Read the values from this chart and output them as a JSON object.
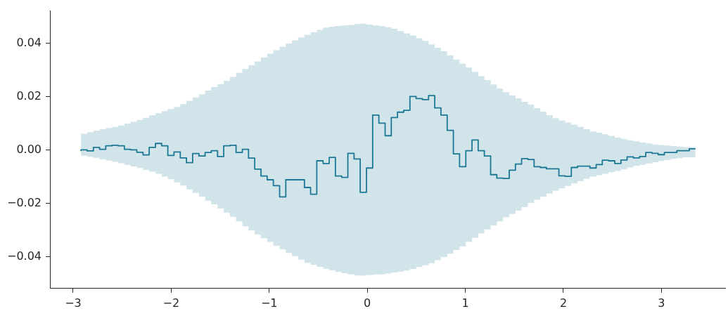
{
  "chart_data": {
    "type": "step",
    "x": [
      -2.92,
      -2.857,
      -2.793,
      -2.73,
      -2.667,
      -2.604,
      -2.54,
      -2.477,
      -2.414,
      -2.35,
      -2.287,
      -2.224,
      -2.16,
      -2.097,
      -2.034,
      -1.971,
      -1.907,
      -1.844,
      -1.781,
      -1.717,
      -1.654,
      -1.591,
      -1.527,
      -1.464,
      -1.401,
      -1.338,
      -1.274,
      -1.211,
      -1.148,
      -1.084,
      -1.021,
      -0.958,
      -0.894,
      -0.831,
      -0.768,
      -0.705,
      -0.641,
      -0.578,
      -0.515,
      -0.451,
      -0.388,
      -0.325,
      -0.261,
      -0.198,
      -0.135,
      -0.072,
      -0.008,
      0.055,
      0.118,
      0.182,
      0.245,
      0.308,
      0.372,
      0.435,
      0.498,
      0.562,
      0.625,
      0.688,
      0.751,
      0.815,
      0.878,
      0.941,
      1.005,
      1.068,
      1.131,
      1.194,
      1.258,
      1.321,
      1.384,
      1.448,
      1.511,
      1.574,
      1.638,
      1.701,
      1.764,
      1.827,
      1.891,
      1.954,
      2.017,
      2.081,
      2.144,
      2.207,
      2.271,
      2.334,
      2.397,
      2.46,
      2.524,
      2.587,
      2.65,
      2.714,
      2.777,
      2.84,
      2.904,
      2.967,
      3.03,
      3.094,
      3.157,
      3.22,
      3.284,
      3.347
    ],
    "series": [
      {
        "color": "#1b7895",
        "values": [
          -0.0003,
          0.0001,
          -0.0003,
          0.001,
          0.0003,
          0.0016,
          0.0018,
          0.0016,
          0.0003,
          0.0001,
          -0.0008,
          -0.0018,
          0.001,
          0.0025,
          0.0016,
          -0.002,
          -0.0007,
          -0.0029,
          -0.0047,
          -0.0013,
          -0.0022,
          -0.0009,
          -0.0002,
          -0.0024,
          0.0016,
          0.0018,
          -0.0009,
          0.0003,
          -0.003,
          -0.0071,
          -0.0097,
          -0.0111,
          -0.0133,
          -0.0175,
          -0.0111,
          -0.0111,
          -0.0111,
          -0.014,
          -0.0165,
          -0.004,
          -0.005,
          -0.0027,
          -0.0097,
          -0.0102,
          -0.0012,
          -0.0033,
          -0.0158,
          -0.0067,
          0.0131,
          0.0101,
          0.0054,
          0.0122,
          0.0142,
          0.0149,
          0.0201,
          0.0193,
          0.0189,
          0.0204,
          0.0158,
          0.0131,
          0.0074,
          -0.0014,
          -0.0062,
          -0.0002,
          0.0038,
          -0.0002,
          -0.0022,
          -0.0092,
          -0.0105,
          -0.0106,
          -0.0075,
          -0.0052,
          -0.0032,
          -0.0035,
          -0.0062,
          -0.0065,
          -0.007,
          -0.007,
          -0.0096,
          -0.0098,
          -0.0065,
          -0.006,
          -0.006,
          -0.0067,
          -0.0054,
          -0.0038,
          -0.004,
          -0.005,
          -0.0037,
          -0.0025,
          -0.0029,
          -0.0024,
          -0.0009,
          -0.0012,
          -0.0017,
          -0.0009,
          -0.0009,
          -0.0002,
          -0.0002,
          0.0005
        ],
        "upper": [
          0.0056,
          0.0061,
          0.0067,
          0.0073,
          0.0078,
          0.0083,
          0.0087,
          0.0092,
          0.0099,
          0.0106,
          0.0113,
          0.0121,
          0.013,
          0.0138,
          0.0146,
          0.0154,
          0.0162,
          0.0172,
          0.0185,
          0.0197,
          0.0209,
          0.0223,
          0.0236,
          0.0247,
          0.026,
          0.0274,
          0.0289,
          0.0304,
          0.0318,
          0.0332,
          0.0347,
          0.0361,
          0.0374,
          0.0387,
          0.0399,
          0.0411,
          0.0422,
          0.0432,
          0.0441,
          0.045,
          0.0459,
          0.0462,
          0.0465,
          0.0467,
          0.0469,
          0.0472,
          0.0473,
          0.047,
          0.0467,
          0.0464,
          0.046,
          0.0454,
          0.0446,
          0.0437,
          0.0429,
          0.0419,
          0.0409,
          0.0396,
          0.0383,
          0.037,
          0.0355,
          0.0339,
          0.0324,
          0.0309,
          0.0293,
          0.0277,
          0.0262,
          0.0246,
          0.0231,
          0.0217,
          0.0205,
          0.0193,
          0.0181,
          0.017,
          0.0157,
          0.0144,
          0.0131,
          0.012,
          0.0111,
          0.0103,
          0.0095,
          0.0087,
          0.0078,
          0.007,
          0.0065,
          0.0059,
          0.0053,
          0.0047,
          0.0042,
          0.0037,
          0.0033,
          0.0029,
          0.0025,
          0.0021,
          0.0019,
          0.0017,
          0.0015,
          0.0013,
          0.0011,
          0.0011
        ],
        "lower": [
          -0.0017,
          -0.0021,
          -0.0025,
          -0.0029,
          -0.0034,
          -0.0039,
          -0.0044,
          -0.0049,
          -0.0055,
          -0.0061,
          -0.0067,
          -0.0074,
          -0.0081,
          -0.0089,
          -0.0099,
          -0.0109,
          -0.0121,
          -0.0133,
          -0.0147,
          -0.016,
          -0.0174,
          -0.0189,
          -0.0203,
          -0.0218,
          -0.0234,
          -0.025,
          -0.0267,
          -0.0285,
          -0.0301,
          -0.0316,
          -0.033,
          -0.0344,
          -0.0358,
          -0.0372,
          -0.0385,
          -0.0397,
          -0.041,
          -0.0422,
          -0.0429,
          -0.0437,
          -0.0444,
          -0.045,
          -0.0456,
          -0.0461,
          -0.0465,
          -0.0469,
          -0.047,
          -0.0468,
          -0.0466,
          -0.0465,
          -0.0462,
          -0.0458,
          -0.0455,
          -0.0451,
          -0.0445,
          -0.0438,
          -0.0431,
          -0.0423,
          -0.0412,
          -0.04,
          -0.0388,
          -0.0374,
          -0.036,
          -0.0344,
          -0.0328,
          -0.0312,
          -0.0297,
          -0.0282,
          -0.0267,
          -0.0252,
          -0.0239,
          -0.0226,
          -0.0213,
          -0.0198,
          -0.0186,
          -0.0174,
          -0.0162,
          -0.0152,
          -0.0143,
          -0.0134,
          -0.0125,
          -0.0116,
          -0.0107,
          -0.0099,
          -0.0094,
          -0.0089,
          -0.0083,
          -0.0078,
          -0.0072,
          -0.0065,
          -0.0059,
          -0.0055,
          -0.005,
          -0.0045,
          -0.0041,
          -0.0037,
          -0.0033,
          -0.003,
          -0.0027,
          -0.0027
        ]
      }
    ],
    "xlim": [
      -3.236,
      3.65
    ],
    "ylim": [
      -0.0518,
      0.0521
    ],
    "xticks": [
      {
        "value": -3,
        "label": "−3"
      },
      {
        "value": -2,
        "label": "−2"
      },
      {
        "value": -1,
        "label": "−1"
      },
      0,
      1,
      2,
      3
    ],
    "yticks": [
      {
        "value": -0.04,
        "label": "−0.04"
      },
      {
        "value": -0.02,
        "label": "−0.02"
      },
      {
        "value": 0,
        "label": "0.00"
      },
      {
        "value": 0.02,
        "label": "0.02"
      },
      {
        "value": 0.04,
        "label": "0.04"
      }
    ],
    "grid": false
  }
}
